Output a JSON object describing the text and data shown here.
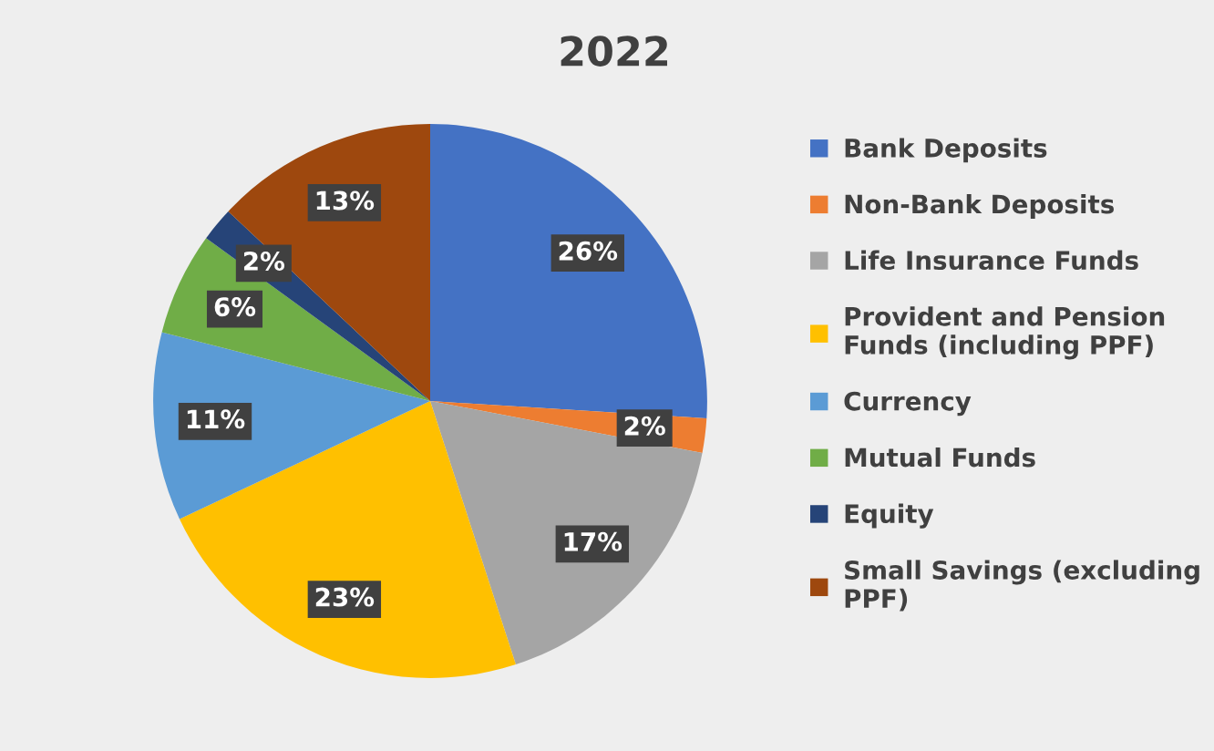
{
  "chart_data": {
    "type": "pie",
    "title": "2022",
    "categories": [
      "Bank Deposits",
      "Non-Bank Deposits",
      "Life Insurance Funds",
      "Provident and Pension\nFunds (including PPF)",
      "Currency",
      "Mutual Funds",
      "Equity",
      "Small Savings (excluding\nPPF)"
    ],
    "values": [
      26,
      2,
      17,
      23,
      11,
      6,
      2,
      13
    ],
    "value_labels": [
      "26%",
      "2%",
      "17%",
      "23%",
      "11%",
      "6%",
      "2%",
      "13%"
    ],
    "colors": [
      "#4472c4",
      "#ed7d31",
      "#a5a5a5",
      "#ffc000",
      "#5b9bd5",
      "#70ad47",
      "#264478",
      "#9e480e"
    ],
    "legend": "right"
  }
}
